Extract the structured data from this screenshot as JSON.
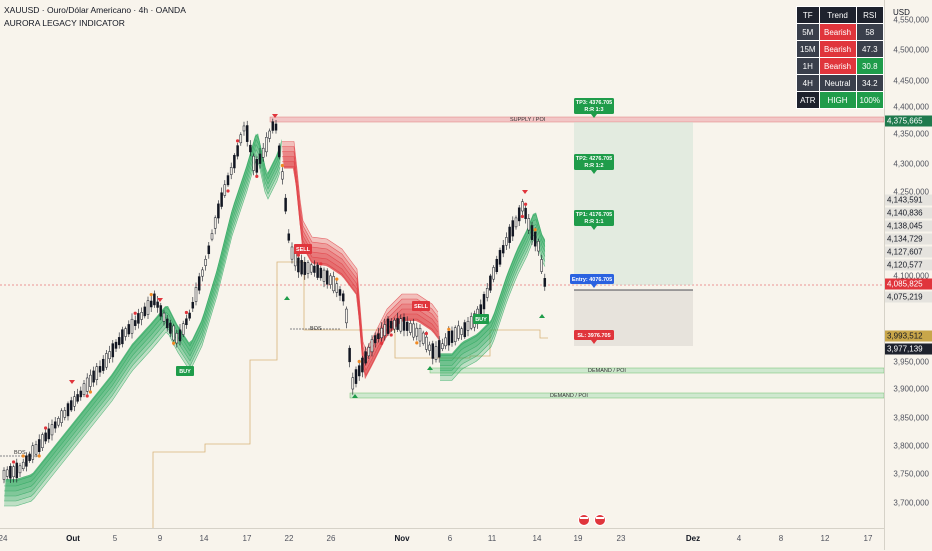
{
  "header": {
    "symbol_line": "XAUUSD · Ouro/Dólar Americano · 4h · OANDA",
    "indicator": "AURORA LEGACY INDICATOR"
  },
  "currency": "USD",
  "table": {
    "head": [
      "TF",
      "Trend",
      "RSI"
    ],
    "rows": [
      {
        "tf": "5M",
        "trend": "Bearish",
        "rsi": "58",
        "trend_color": "#e0353c",
        "rsi_color": "#3a3f4b"
      },
      {
        "tf": "15M",
        "trend": "Bearish",
        "rsi": "47.3",
        "trend_color": "#e0353c",
        "rsi_color": "#3a3f4b"
      },
      {
        "tf": "1H",
        "trend": "Bearish",
        "rsi": "30.8",
        "trend_color": "#e0353c",
        "rsi_color": "#1f9c4a"
      },
      {
        "tf": "4H",
        "trend": "Neutral",
        "rsi": "34.2",
        "trend_color": "#3a3f4b",
        "rsi_color": "#3a3f4b"
      },
      {
        "tf": "ATR",
        "trend": "HIGH",
        "rsi": "100%",
        "trend_color": "#1f9c4a",
        "rsi_color": "#1f9c4a"
      }
    ]
  },
  "price_axis": {
    "labels": [
      "4,550,000",
      "4,500,000",
      "4,450,000",
      "4,400,000",
      "4,350,000",
      "4,300,000",
      "4,250,000",
      "4,100,000",
      "3,950,000",
      "3,900,000",
      "3,850,000",
      "3,800,000",
      "3,750,000",
      "3,700,000"
    ],
    "tags": [
      {
        "text": "4,375,665",
        "bg": "#1f7a4d",
        "fg": "#ffffff"
      },
      {
        "text": "4,143,591",
        "bg": "#e5e3de",
        "fg": "#131722"
      },
      {
        "text": "4,140,836",
        "bg": "#e5e3de",
        "fg": "#131722"
      },
      {
        "text": "4,138,045",
        "bg": "#e5e3de",
        "fg": "#131722"
      },
      {
        "text": "4,134,729",
        "bg": "#e5e3de",
        "fg": "#131722"
      },
      {
        "text": "4,127,607",
        "bg": "#e5e3de",
        "fg": "#131722"
      },
      {
        "text": "4,120,577",
        "bg": "#e5e3de",
        "fg": "#131722"
      },
      {
        "text": "4,085,825",
        "bg": "#e0353c",
        "fg": "#ffffff"
      },
      {
        "text": "4,075,219",
        "bg": "#e5e3de",
        "fg": "#131722"
      },
      {
        "text": "3,993,512",
        "bg": "#c8a64a",
        "fg": "#131722"
      },
      {
        "text": "3,977,139",
        "bg": "#1e222d",
        "fg": "#ffffff"
      }
    ]
  },
  "time_axis": [
    {
      "text": "24",
      "bold": false
    },
    {
      "text": "Out",
      "bold": true
    },
    {
      "text": "5",
      "bold": false
    },
    {
      "text": "9",
      "bold": false
    },
    {
      "text": "14",
      "bold": false
    },
    {
      "text": "17",
      "bold": false
    },
    {
      "text": "22",
      "bold": false
    },
    {
      "text": "26",
      "bold": false
    },
    {
      "text": "Nov",
      "bold": true
    },
    {
      "text": "6",
      "bold": false
    },
    {
      "text": "11",
      "bold": false
    },
    {
      "text": "14",
      "bold": false
    },
    {
      "text": "19",
      "bold": false
    },
    {
      "text": "23",
      "bold": false
    },
    {
      "text": "Dez",
      "bold": true
    },
    {
      "text": "4",
      "bold": false
    },
    {
      "text": "8",
      "bold": false
    },
    {
      "text": "12",
      "bold": false
    },
    {
      "text": "17",
      "bold": false
    }
  ],
  "zones": {
    "supply": "SUPPLY / POI",
    "demand1": "DEMAND / POI",
    "demand2": "DEMAND / POI",
    "bos1": "BOS",
    "bos2": "BOS"
  },
  "targets": {
    "tp3": "TP3: 4376.705",
    "tp3_rr": "R:R 1:3",
    "tp2": "TP2: 4276.705",
    "tp2_rr": "R:R 1:2",
    "tp1": "TP1: 4176.705",
    "tp1_rr": "R:R 1:1",
    "entry": "Entry: 4076.705",
    "sl": "SL: 3976.705"
  },
  "signals": {
    "buy1": "BUY",
    "sell1": "SELL",
    "sell2": "SELL",
    "buy2": "BUY"
  },
  "colors": {
    "up": "#131722",
    "down": "#131722",
    "bull_ribbon": "#26a65b",
    "bear_ribbon": "#e0353c",
    "supply": "#f2c6c6",
    "demand": "#cfe8cf"
  }
}
